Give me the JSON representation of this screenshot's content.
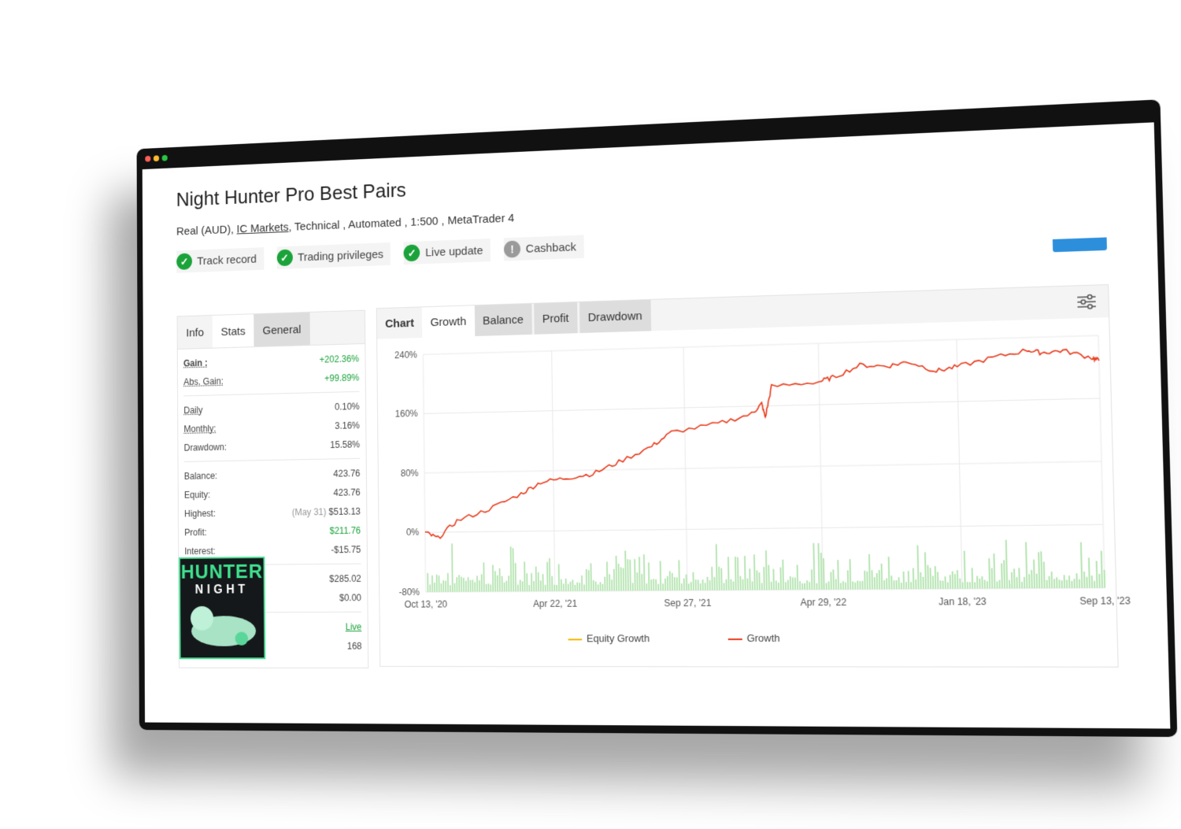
{
  "header": {
    "title": "Night Hunter Pro Best Pairs",
    "account_type": "Real (AUD),",
    "broker": "IC Markets",
    "details": ", Technical , Automated , 1:500 , MetaTrader 4"
  },
  "badges": [
    {
      "label": "Track record",
      "status": "ok"
    },
    {
      "label": "Trading privileges",
      "status": "ok"
    },
    {
      "label": "Live update",
      "status": "ok"
    },
    {
      "label": "Cashback",
      "status": "warn"
    }
  ],
  "colors": {
    "ok": "#1aa33a",
    "warn": "#9a9a9a",
    "growth": "#e8391a",
    "equity": "#f3b800",
    "bars": "#b9e6b5"
  },
  "stats": {
    "tabs": [
      "Info",
      "Stats",
      "General"
    ],
    "rows": [
      {
        "label": "Gain :",
        "value": "+202.36%"
      },
      {
        "label": "Abs. Gain:",
        "value": "+99.89%"
      },
      {
        "label": "Daily",
        "value": "0.10%"
      },
      {
        "label": "Monthly:",
        "value": "3.16%"
      },
      {
        "label": "Drawdown:",
        "value": "15.58%"
      },
      {
        "label": "Balance:",
        "value": "423.76"
      },
      {
        "label": "Equity:",
        "value": "423.76"
      },
      {
        "label": "Highest:",
        "note": "(May 31)",
        "value": "$513.13"
      },
      {
        "label": "Profit:",
        "value": "$211.76"
      },
      {
        "label": "Interest:",
        "value": "-$15.75"
      },
      {
        "value": "$285.02"
      },
      {
        "value": "$0.00"
      },
      {
        "value": "Live"
      },
      {
        "value": "168"
      }
    ]
  },
  "logo": {
    "line1": "HUNTER",
    "line2": "NIGHT"
  },
  "chart_tabs": [
    "Chart",
    "Growth",
    "Balance",
    "Profit",
    "Drawdown"
  ],
  "chart_data": {
    "type": "line",
    "ylim": [
      -80,
      240
    ],
    "yticks": [
      "240%",
      "160%",
      "80%",
      "0%",
      "-80%"
    ],
    "ytick_values": [
      240,
      160,
      80,
      0,
      -80
    ],
    "xticks": [
      "Oct 13, '20",
      "Apr 22, '21",
      "Sep 27, '21",
      "Apr 29, '22",
      "Jan 18, '23",
      "Sep 13, '23"
    ],
    "series": [
      {
        "name": "Equity Growth",
        "values": []
      },
      {
        "name": "Growth",
        "x": [
          0,
          0.02,
          0.05,
          0.1,
          0.15,
          0.18,
          0.22,
          0.26,
          0.3,
          0.35,
          0.38,
          0.45,
          0.5,
          0.515,
          0.52,
          0.53,
          0.6,
          0.62,
          0.66,
          0.7,
          0.73,
          0.77,
          0.8,
          0.85,
          0.9,
          0.92,
          0.95,
          0.99,
          1
        ],
        "values": [
          0,
          -8,
          15,
          30,
          50,
          65,
          70,
          75,
          90,
          110,
          128,
          138,
          150,
          163,
          145,
          185,
          190,
          195,
          210,
          208,
          213,
          200,
          205,
          215,
          224,
          220,
          222,
          212,
          208
        ]
      }
    ],
    "legend": [
      "Equity Growth",
      "Growth"
    ]
  }
}
